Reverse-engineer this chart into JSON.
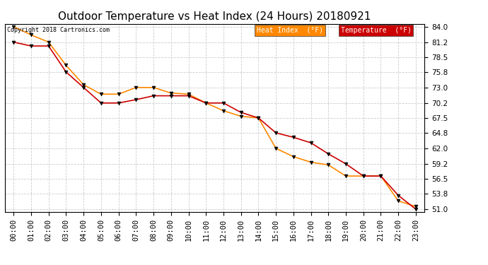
{
  "title": "Outdoor Temperature vs Heat Index (24 Hours) 20180921",
  "copyright": "Copyright 2018 Cartronics.com",
  "hours": [
    "00:00",
    "01:00",
    "02:00",
    "03:00",
    "04:00",
    "05:00",
    "06:00",
    "07:00",
    "08:00",
    "09:00",
    "10:00",
    "11:00",
    "12:00",
    "13:00",
    "14:00",
    "15:00",
    "16:00",
    "17:00",
    "18:00",
    "19:00",
    "20:00",
    "21:00",
    "22:00",
    "23:00"
  ],
  "temperature": [
    81.2,
    80.5,
    80.5,
    75.8,
    73.0,
    70.2,
    70.2,
    70.8,
    71.5,
    71.5,
    71.5,
    70.2,
    70.2,
    68.5,
    67.5,
    64.8,
    64.0,
    63.0,
    61.0,
    59.2,
    57.0,
    57.0,
    53.5,
    51.0
  ],
  "heat_index": [
    84.0,
    82.5,
    81.2,
    77.0,
    73.5,
    71.8,
    71.8,
    73.0,
    73.0,
    72.0,
    71.8,
    70.2,
    68.8,
    67.8,
    67.5,
    62.0,
    60.5,
    59.5,
    59.0,
    57.0,
    57.0,
    57.0,
    52.5,
    51.5
  ],
  "temp_color": "#cc0000",
  "heat_color": "#ff8800",
  "ylim_min": 50.5,
  "ylim_max": 84.5,
  "yticks": [
    51.0,
    53.8,
    56.5,
    59.2,
    62.0,
    64.8,
    67.5,
    70.2,
    73.0,
    75.8,
    78.5,
    81.2,
    84.0
  ],
  "bg_color": "#ffffff",
  "grid_color": "#cccccc",
  "legend_heat_bg": "#ff8800",
  "legend_temp_bg": "#cc0000",
  "legend_text_color": "#ffffff",
  "title_fontsize": 11,
  "axis_fontsize": 7.5,
  "legend_heat_label": "Heat Index  (°F)",
  "legend_temp_label": "Temperature  (°F)"
}
